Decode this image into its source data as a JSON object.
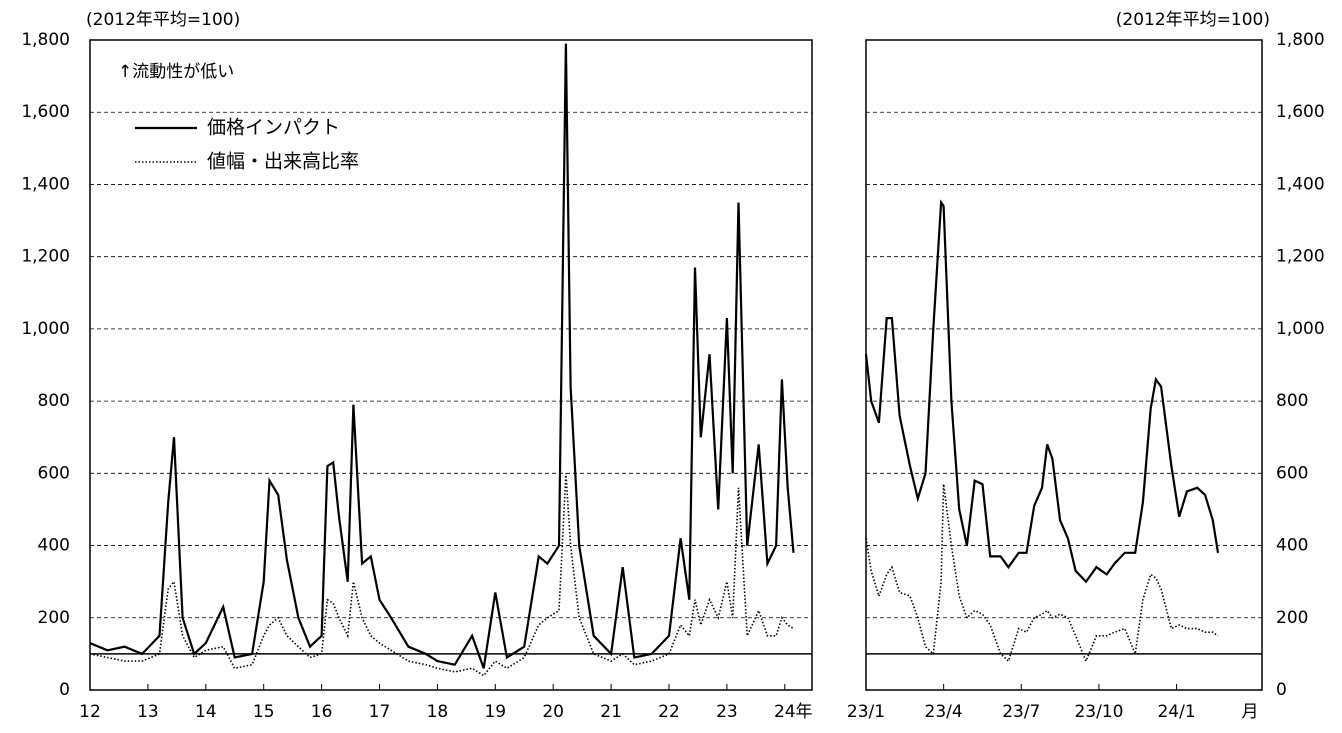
{
  "chart_data": [
    {
      "type": "line",
      "y_label": "(2012年平均=100)",
      "x_unit": "年",
      "annotation": "↑流動性が低い",
      "yaxis_side": "left",
      "legend": true,
      "grid": true,
      "reference_line": 100,
      "xlim": [
        12,
        24.47
      ],
      "xticks": [
        12,
        13,
        14,
        15,
        16,
        17,
        18,
        19,
        20,
        21,
        22,
        23,
        24
      ],
      "ylim": [
        0,
        1800
      ],
      "yticks": [
        0,
        200,
        400,
        600,
        800,
        {
          "value": 1000,
          "label": "1,000"
        },
        {
          "value": 1200,
          "label": "1,200"
        },
        {
          "value": 1400,
          "label": "1,400"
        },
        {
          "value": 1600,
          "label": "1,600"
        },
        {
          "value": 1800,
          "label": "1,800"
        }
      ],
      "x": [
        12.0,
        12.3,
        12.6,
        12.9,
        13.2,
        13.35,
        13.45,
        13.6,
        13.8,
        14.0,
        14.3,
        14.5,
        14.8,
        15.0,
        15.1,
        15.25,
        15.4,
        15.6,
        15.8,
        16.0,
        16.1,
        16.2,
        16.3,
        16.45,
        16.55,
        16.7,
        16.85,
        17.0,
        17.2,
        17.5,
        17.8,
        18.0,
        18.3,
        18.6,
        18.8,
        19.0,
        19.2,
        19.5,
        19.75,
        19.9,
        20.1,
        20.22,
        20.3,
        20.45,
        20.7,
        21.0,
        21.2,
        21.4,
        21.7,
        22.0,
        22.2,
        22.35,
        22.45,
        22.55,
        22.7,
        22.85,
        23.0,
        23.1,
        23.2,
        23.35,
        23.55,
        23.7,
        23.85,
        23.95,
        24.05,
        24.15
      ],
      "series": [
        {
          "name": "価格インパクト",
          "color": "#000000",
          "dash": "solid",
          "values": [
            130,
            110,
            120,
            100,
            150,
            520,
            700,
            200,
            100,
            130,
            230,
            90,
            100,
            300,
            580,
            540,
            360,
            200,
            120,
            150,
            620,
            630,
            480,
            300,
            790,
            350,
            370,
            250,
            200,
            120,
            100,
            80,
            70,
            150,
            60,
            270,
            90,
            120,
            370,
            350,
            400,
            1790,
            840,
            400,
            150,
            100,
            340,
            90,
            100,
            150,
            420,
            250,
            1170,
            700,
            930,
            500,
            1030,
            600,
            1350,
            400,
            680,
            350,
            400,
            860,
            560,
            380
          ]
        },
        {
          "name": "値幅・出来高比率",
          "color": "#000000",
          "dash": "dotted",
          "values": [
            100,
            90,
            80,
            80,
            100,
            280,
            300,
            150,
            90,
            110,
            120,
            60,
            70,
            150,
            180,
            200,
            150,
            120,
            90,
            100,
            250,
            240,
            200,
            150,
            300,
            200,
            150,
            130,
            110,
            80,
            70,
            60,
            50,
            60,
            40,
            80,
            60,
            90,
            180,
            200,
            220,
            600,
            400,
            200,
            100,
            80,
            100,
            70,
            80,
            100,
            180,
            150,
            250,
            180,
            250,
            200,
            300,
            200,
            560,
            150,
            220,
            150,
            150,
            200,
            180,
            170
          ]
        }
      ]
    },
    {
      "type": "line",
      "y_label": "(2012年平均=100)",
      "x_unit": "月",
      "yaxis_side": "right",
      "legend": false,
      "grid": true,
      "reference_line": 100,
      "xlim": [
        0,
        15.3
      ],
      "xticks": [
        {
          "value": 0,
          "label": "23/1"
        },
        {
          "value": 3,
          "label": "23/4"
        },
        {
          "value": 6,
          "label": "23/7"
        },
        {
          "value": 9,
          "label": "23/10"
        },
        {
          "value": 12,
          "label": "24/1"
        }
      ],
      "ylim": [
        0,
        1800
      ],
      "yticks": [
        0,
        200,
        400,
        600,
        800,
        {
          "value": 1000,
          "label": "1,000"
        },
        {
          "value": 1200,
          "label": "1,200"
        },
        {
          "value": 1400,
          "label": "1,400"
        },
        {
          "value": 1600,
          "label": "1,600"
        },
        {
          "value": 1800,
          "label": "1,800"
        }
      ],
      "x": [
        0,
        0.2,
        0.5,
        0.8,
        1.0,
        1.3,
        1.7,
        2.0,
        2.3,
        2.6,
        2.9,
        3.0,
        3.3,
        3.6,
        3.9,
        4.2,
        4.5,
        4.8,
        5.2,
        5.5,
        5.9,
        6.2,
        6.5,
        6.8,
        7.0,
        7.2,
        7.5,
        7.8,
        8.1,
        8.5,
        8.9,
        9.3,
        9.6,
        10.0,
        10.4,
        10.7,
        11.0,
        11.2,
        11.4,
        11.8,
        12.1,
        12.4,
        12.8,
        13.1,
        13.4,
        13.6
      ],
      "series": [
        {
          "name": "価格インパクト",
          "color": "#000000",
          "dash": "solid",
          "values": [
            930,
            800,
            740,
            1030,
            1030,
            760,
            620,
            530,
            600,
            1000,
            1350,
            1340,
            800,
            500,
            400,
            580,
            570,
            370,
            370,
            340,
            380,
            380,
            510,
            560,
            680,
            640,
            470,
            420,
            330,
            300,
            340,
            320,
            350,
            380,
            380,
            520,
            780,
            860,
            840,
            620,
            480,
            550,
            560,
            540,
            470,
            380
          ]
        },
        {
          "name": "値幅・出来高比率",
          "color": "#000000",
          "dash": "dotted",
          "values": [
            420,
            330,
            260,
            320,
            340,
            270,
            260,
            200,
            120,
            100,
            300,
            570,
            400,
            260,
            200,
            220,
            210,
            180,
            100,
            80,
            170,
            160,
            200,
            210,
            220,
            200,
            210,
            200,
            150,
            80,
            150,
            150,
            160,
            170,
            100,
            250,
            320,
            310,
            280,
            170,
            180,
            170,
            170,
            160,
            160,
            150
          ]
        }
      ]
    }
  ]
}
